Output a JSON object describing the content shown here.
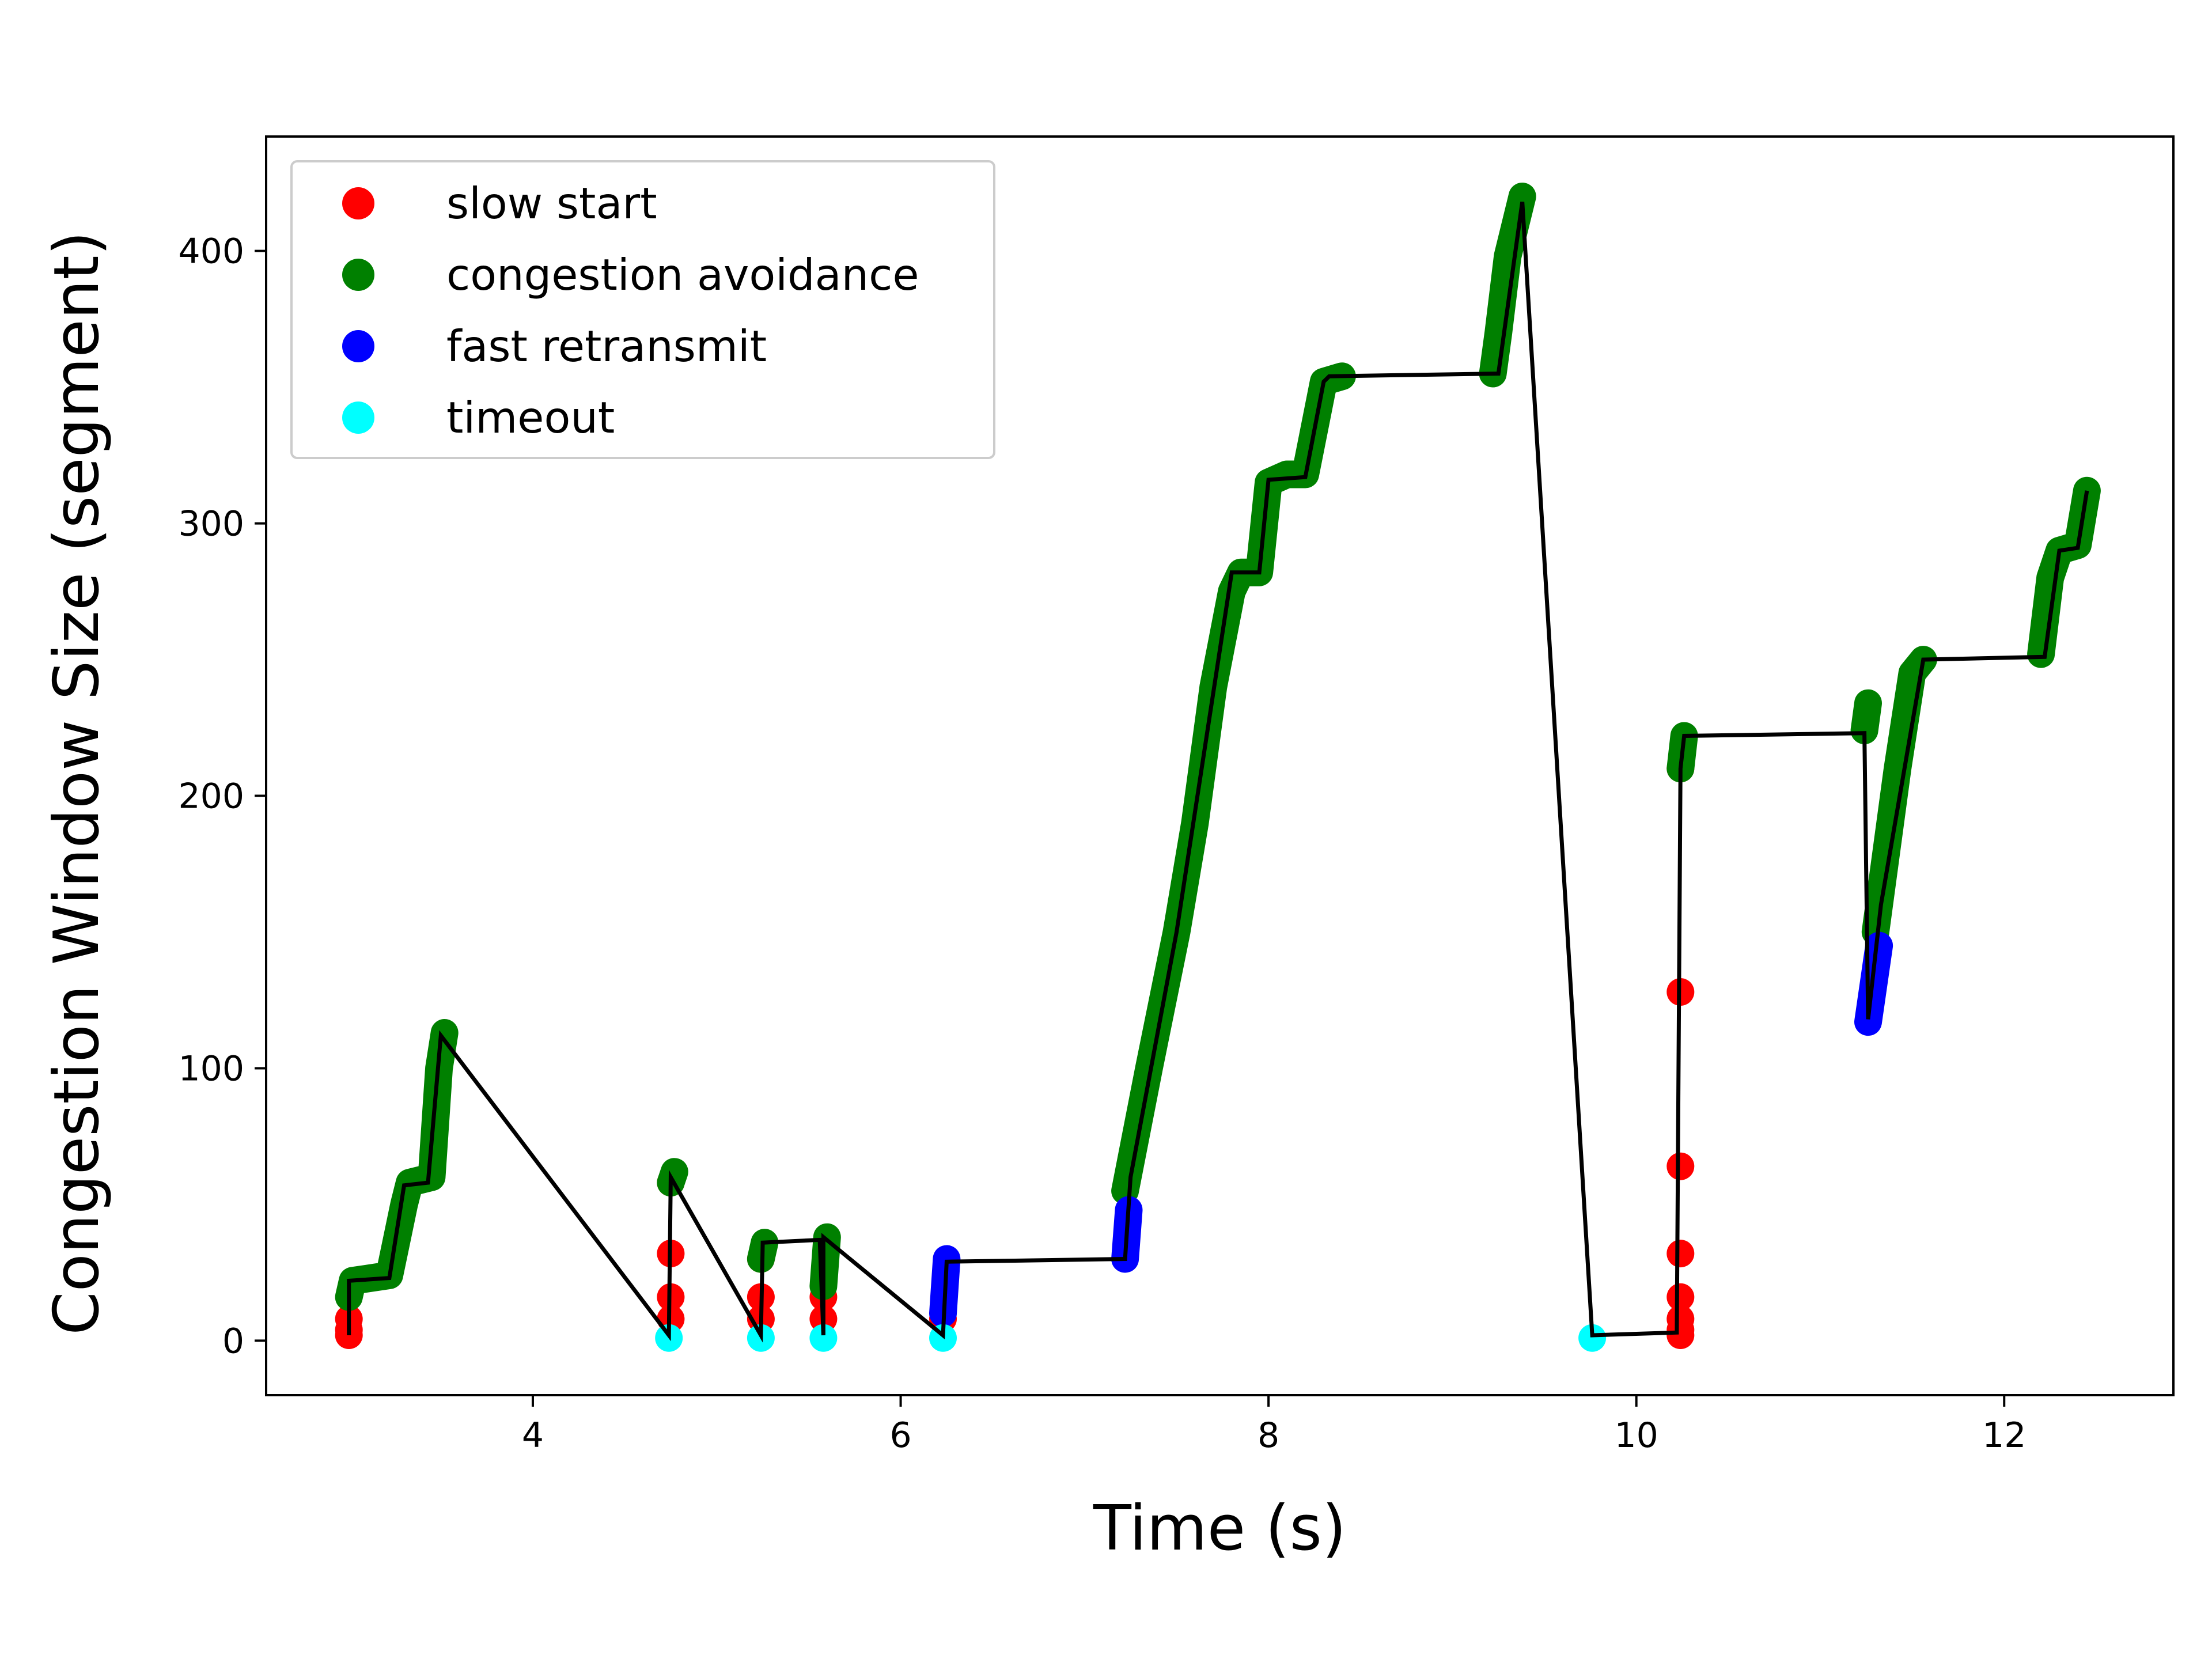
{
  "chart_data": {
    "type": "scatter",
    "title": "",
    "xlabel": "Time (s)",
    "ylabel": "Congestion Window Size (segment)",
    "xlim": [
      2.55,
      12.92
    ],
    "ylim": [
      -20,
      442
    ],
    "xticks": [
      4,
      6,
      8,
      10,
      12
    ],
    "yticks": [
      0,
      100,
      200,
      300,
      400
    ],
    "grid": false,
    "legend_position": "top-left",
    "series": [
      {
        "name": "slow start",
        "color": "#ff0000",
        "mode": "points",
        "points": [
          [
            3.0,
            2
          ],
          [
            3.0,
            4
          ],
          [
            3.0,
            8
          ],
          [
            4.75,
            8
          ],
          [
            4.75,
            16
          ],
          [
            4.75,
            32
          ],
          [
            4.75,
            58
          ],
          [
            5.24,
            8
          ],
          [
            5.24,
            16
          ],
          [
            5.24,
            30
          ],
          [
            5.58,
            8
          ],
          [
            5.58,
            16
          ],
          [
            6.23,
            8
          ],
          [
            10.24,
            2
          ],
          [
            10.24,
            4
          ],
          [
            10.24,
            8
          ],
          [
            10.24,
            16
          ],
          [
            10.24,
            32
          ],
          [
            10.24,
            64
          ],
          [
            10.24,
            128
          ],
          [
            10.24,
            210
          ]
        ]
      },
      {
        "name": "congestion avoidance",
        "color": "#008000",
        "mode": "path",
        "segments": [
          [
            [
              3.0,
              16
            ],
            [
              3.02,
              22
            ],
            [
              3.22,
              24
            ],
            [
              3.3,
              50
            ],
            [
              3.33,
              58
            ],
            [
              3.45,
              60
            ],
            [
              3.49,
              100
            ],
            [
              3.52,
              113
            ]
          ],
          [
            [
              4.75,
              58
            ],
            [
              4.77,
              62
            ]
          ],
          [
            [
              5.24,
              30
            ],
            [
              5.26,
              36
            ]
          ],
          [
            [
              5.58,
              20
            ],
            [
              5.6,
              38
            ]
          ],
          [
            [
              7.22,
              55
            ],
            [
              7.35,
              100
            ],
            [
              7.5,
              150
            ],
            [
              7.6,
              190
            ],
            [
              7.7,
              240
            ],
            [
              7.8,
              275
            ],
            [
              7.85,
              282
            ],
            [
              7.95,
              282
            ],
            [
              8.0,
              315
            ],
            [
              8.1,
              318
            ],
            [
              8.2,
              318
            ],
            [
              8.3,
              352
            ],
            [
              8.4,
              354
            ]
          ],
          [
            [
              9.22,
              355
            ],
            [
              9.25,
              370
            ],
            [
              9.3,
              398
            ],
            [
              9.38,
              420
            ]
          ],
          [
            [
              10.24,
              210
            ],
            [
              10.26,
              222
            ]
          ],
          [
            [
              11.24,
              224
            ],
            [
              11.26,
              234
            ]
          ],
          [
            [
              11.3,
              150
            ],
            [
              11.42,
              210
            ],
            [
              11.5,
              245
            ],
            [
              11.56,
              250
            ]
          ],
          [
            [
              12.2,
              252
            ],
            [
              12.25,
              280
            ],
            [
              12.3,
              290
            ],
            [
              12.4,
              292
            ],
            [
              12.45,
              312
            ]
          ]
        ]
      },
      {
        "name": "fast retransmit",
        "color": "#0000ff",
        "mode": "path",
        "segments": [
          [
            [
              6.23,
              10
            ],
            [
              6.25,
              30
            ]
          ],
          [
            [
              7.22,
              30
            ],
            [
              7.24,
              48
            ]
          ],
          [
            [
              11.26,
              117
            ],
            [
              11.32,
              145
            ]
          ]
        ]
      },
      {
        "name": "timeout",
        "color": "#00ffff",
        "mode": "points",
        "points": [
          [
            4.74,
            1
          ],
          [
            5.24,
            1
          ],
          [
            5.58,
            1
          ],
          [
            6.23,
            1
          ],
          [
            9.76,
            1
          ]
        ]
      }
    ],
    "cwnd_line": {
      "color": "#000000",
      "points": [
        [
          3.0,
          2
        ],
        [
          3.0,
          22
        ],
        [
          3.22,
          23
        ],
        [
          3.3,
          57
        ],
        [
          3.43,
          58
        ],
        [
          3.5,
          112
        ],
        [
          4.74,
          2
        ],
        [
          4.75,
          60
        ],
        [
          5.24,
          2
        ],
        [
          5.25,
          36
        ],
        [
          5.56,
          37
        ],
        [
          5.58,
          2
        ],
        [
          5.58,
          38
        ],
        [
          6.23,
          2
        ],
        [
          6.25,
          29
        ],
        [
          7.22,
          30
        ],
        [
          7.25,
          60
        ],
        [
          7.5,
          150
        ],
        [
          7.8,
          282
        ],
        [
          7.95,
          282
        ],
        [
          8.0,
          316
        ],
        [
          8.2,
          317
        ],
        [
          8.3,
          352
        ],
        [
          8.33,
          354
        ],
        [
          9.25,
          355
        ],
        [
          9.38,
          418
        ],
        [
          9.76,
          2
        ],
        [
          10.22,
          3
        ],
        [
          10.24,
          210
        ],
        [
          10.26,
          222
        ],
        [
          11.24,
          223
        ],
        [
          11.26,
          118
        ],
        [
          11.33,
          160
        ],
        [
          11.56,
          250
        ],
        [
          12.22,
          251
        ],
        [
          12.3,
          290
        ],
        [
          12.4,
          291
        ],
        [
          12.45,
          312
        ]
      ]
    }
  }
}
